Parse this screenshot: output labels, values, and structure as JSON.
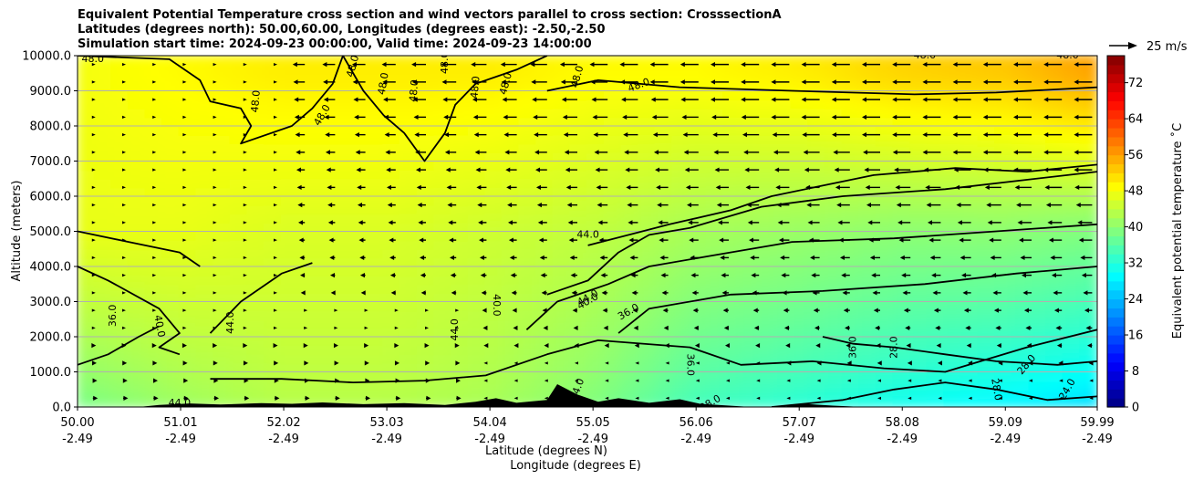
{
  "chart_data": {
    "type": "heatmap",
    "title_lines": [
      "Equivalent Potential Temperature cross section and wind vectors parallel to cross section: CrosssectionA",
      "Latitudes (degrees north): 50.00,60.00, Longitudes (degrees east): -2.50,-2.50",
      "Simulation start time: 2024-09-23 00:00:00, Valid time: 2024-09-23 14:00:00"
    ],
    "ylabel": "Altitude (meters)",
    "xlabel_lines": [
      "Latitude (degrees N)",
      "Longitude (degrees E)"
    ],
    "x_ticks": [
      {
        "lat": "50.00",
        "lon": "-2.49"
      },
      {
        "lat": "51.01",
        "lon": "-2.49"
      },
      {
        "lat": "52.02",
        "lon": "-2.49"
      },
      {
        "lat": "53.03",
        "lon": "-2.49"
      },
      {
        "lat": "54.04",
        "lon": "-2.49"
      },
      {
        "lat": "55.05",
        "lon": "-2.49"
      },
      {
        "lat": "56.06",
        "lon": "-2.49"
      },
      {
        "lat": "57.07",
        "lon": "-2.49"
      },
      {
        "lat": "58.08",
        "lon": "-2.49"
      },
      {
        "lat": "59.09",
        "lon": "-2.49"
      },
      {
        "lat": "59.99",
        "lon": "-2.49"
      }
    ],
    "x_range": [
      50.0,
      59.99
    ],
    "y_ticks": [
      "0.0",
      "1000.0",
      "2000.0",
      "3000.0",
      "4000.0",
      "5000.0",
      "6000.0",
      "7000.0",
      "8000.0",
      "9000.0",
      "10000.0"
    ],
    "ylim": [
      0,
      10000
    ],
    "grid": "horizontal",
    "colorbar": {
      "label": "Equivalent potential temperature ˚C",
      "ticks": [
        "0",
        "8",
        "16",
        "24",
        "32",
        "40",
        "48",
        "56",
        "64",
        "72"
      ],
      "range": [
        0,
        78
      ],
      "colormap": "jet"
    },
    "quiver_key": {
      "label": "25 m/s",
      "value": 25
    },
    "contour_labels": [
      "48.0",
      "48.0",
      "48.0",
      "48.0",
      "48.0",
      "48.0",
      "48.0",
      "48.0",
      "48.0",
      "48.0",
      "48.0",
      "48.0",
      "48.0",
      "44.0",
      "40.0",
      "40.0",
      "40.0",
      "36.0",
      "36.0",
      "36.0",
      "44.0",
      "44.0",
      "44.0",
      "36.0",
      "28.0",
      "28.0",
      "28.0",
      "28.0",
      "24.0",
      "44.0",
      "44.0"
    ],
    "theta_field_description_values": {
      "lat": [
        50.0,
        51.01,
        52.02,
        53.03,
        54.04,
        55.05,
        56.06,
        57.07,
        58.08,
        59.09,
        59.99
      ],
      "surface_theta_e": [
        38,
        41,
        43,
        43,
        42,
        39,
        34,
        32,
        30,
        28,
        26
      ],
      "midlevel_5000m_theta_e": [
        47,
        47,
        46,
        46,
        45,
        44,
        42,
        41,
        40,
        40,
        39
      ],
      "upper_9500m_theta_e": [
        48,
        49,
        50,
        50,
        50,
        49,
        49,
        50,
        52,
        53,
        56
      ]
    }
  }
}
